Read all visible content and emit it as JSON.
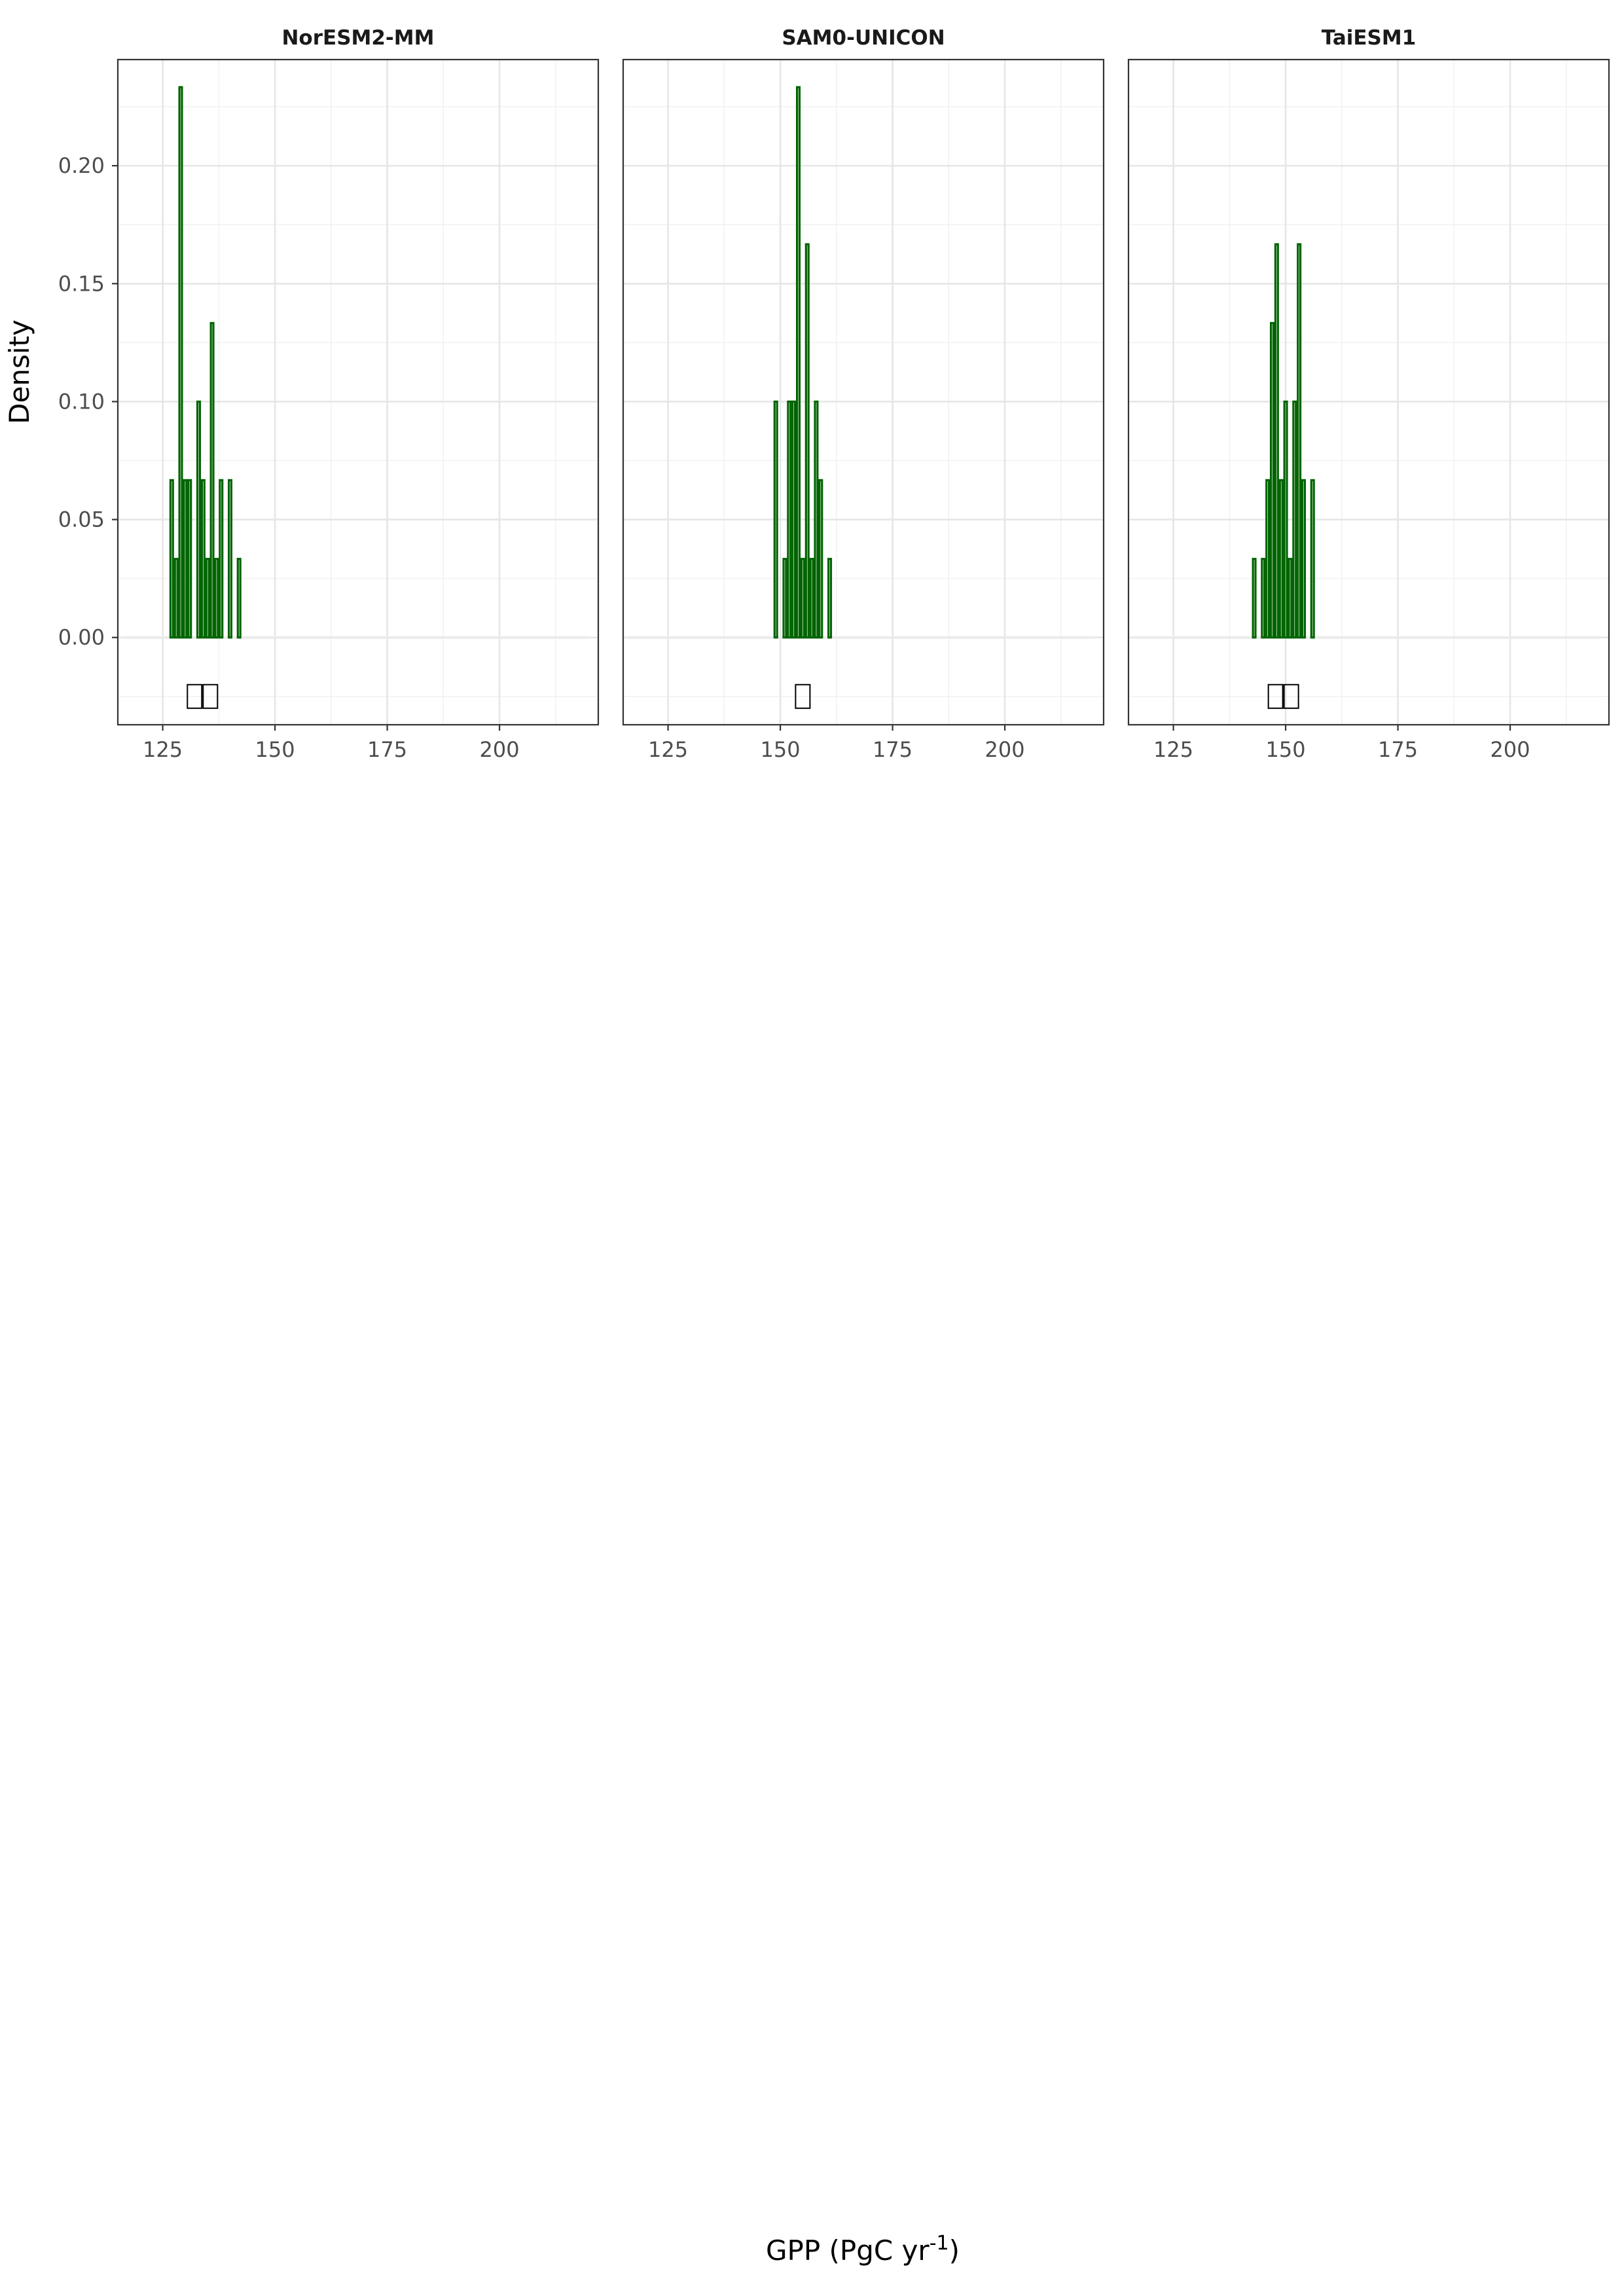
{
  "chart_data": {
    "type": "bar",
    "facet_layout": "1 row of 3 panels, shared axes",
    "y_axis_title": "Density",
    "x_axis_title": {
      "main": "GPP (PgC yr",
      "superscript": "-1",
      "close": ")"
    },
    "xlim": [
      115,
      222
    ],
    "ylim": [
      -0.037,
      0.245
    ],
    "x_ticks": [
      125,
      150,
      175,
      200
    ],
    "x_tick_labels": [
      "125",
      "150",
      "175",
      "200"
    ],
    "y_ticks": [
      0.0,
      0.05,
      0.1,
      0.15,
      0.2
    ],
    "y_tick_labels": [
      "0.00",
      "0.05",
      "0.10",
      "0.15",
      "0.20"
    ],
    "grid": true,
    "bar_color": "#006400",
    "bin_width": 1,
    "baseline_x_range": [
      116,
      220
    ],
    "panels": [
      {
        "title": "NorESM2-MM",
        "bins": [
          {
            "x": 127,
            "density": 0.0667
          },
          {
            "x": 128,
            "density": 0.0333
          },
          {
            "x": 129,
            "density": 0.2333
          },
          {
            "x": 130,
            "density": 0.0667
          },
          {
            "x": 131,
            "density": 0.0667
          },
          {
            "x": 133,
            "density": 0.1
          },
          {
            "x": 134,
            "density": 0.0667
          },
          {
            "x": 135,
            "density": 0.0333
          },
          {
            "x": 136,
            "density": 0.1333
          },
          {
            "x": 137,
            "density": 0.0333
          },
          {
            "x": 138,
            "density": 0.0667
          },
          {
            "x": 140,
            "density": 0.0667
          },
          {
            "x": 142,
            "density": 0.0333
          }
        ],
        "unrendered_glyphs": 2
      },
      {
        "title": "SAM0-UNICON",
        "bins": [
          {
            "x": 149,
            "density": 0.1
          },
          {
            "x": 151,
            "density": 0.0333
          },
          {
            "x": 152,
            "density": 0.1
          },
          {
            "x": 153,
            "density": 0.1
          },
          {
            "x": 154,
            "density": 0.2333
          },
          {
            "x": 155,
            "density": 0.0333
          },
          {
            "x": 156,
            "density": 0.1667
          },
          {
            "x": 157,
            "density": 0.0333
          },
          {
            "x": 158,
            "density": 0.1
          },
          {
            "x": 159,
            "density": 0.0667
          },
          {
            "x": 161,
            "density": 0.0333
          }
        ],
        "unrendered_glyphs": 1
      },
      {
        "title": "TaiESM1",
        "bins": [
          {
            "x": 143,
            "density": 0.0333
          },
          {
            "x": 145,
            "density": 0.0333
          },
          {
            "x": 146,
            "density": 0.0667
          },
          {
            "x": 147,
            "density": 0.1333
          },
          {
            "x": 148,
            "density": 0.1667
          },
          {
            "x": 149,
            "density": 0.0667
          },
          {
            "x": 150,
            "density": 0.1
          },
          {
            "x": 151,
            "density": 0.0333
          },
          {
            "x": 152,
            "density": 0.1
          },
          {
            "x": 153,
            "density": 0.1667
          },
          {
            "x": 154,
            "density": 0.0667
          },
          {
            "x": 156,
            "density": 0.0667
          }
        ],
        "unrendered_glyphs": 2
      }
    ]
  }
}
